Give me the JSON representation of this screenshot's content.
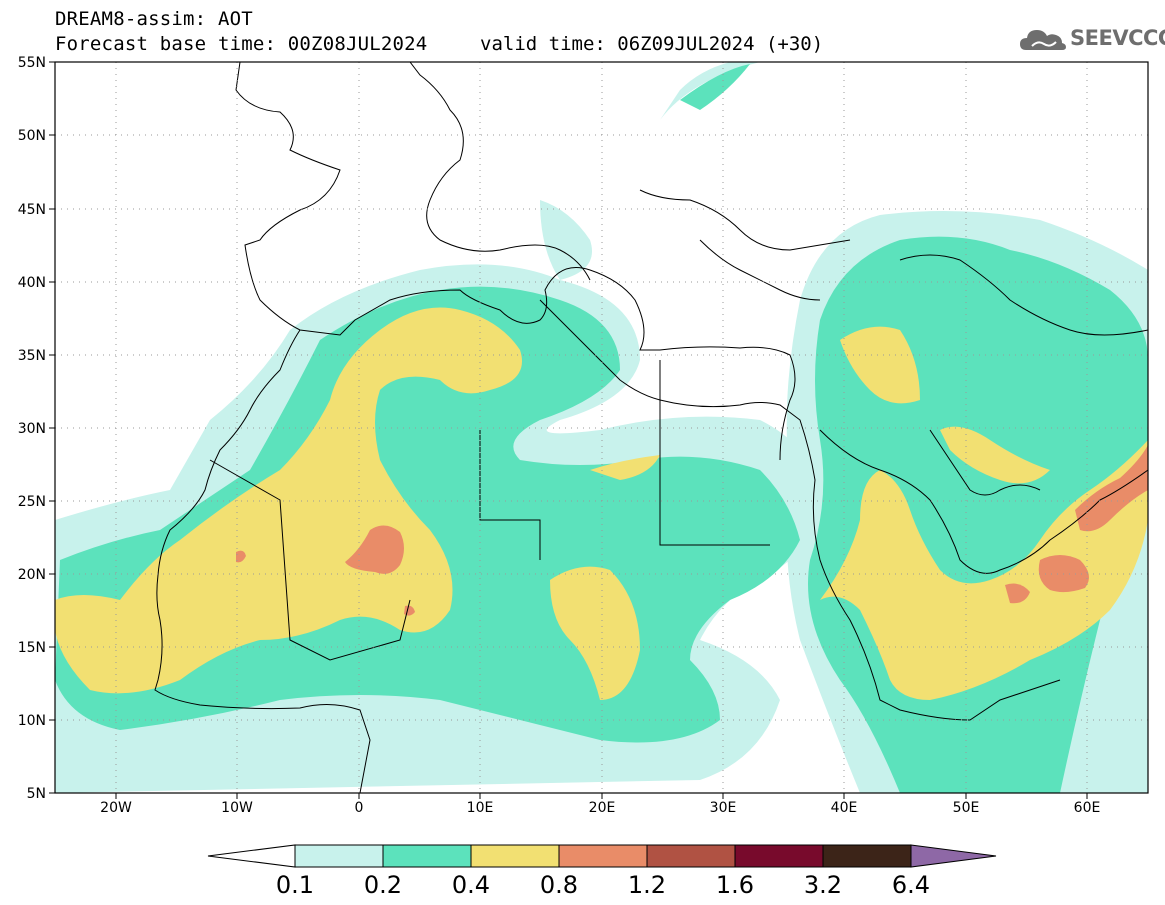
{
  "header": {
    "title": "DREAM8-assim: AOT",
    "base_time": "Forecast base time: 00Z08JUL2024",
    "valid_time": "valid time: 06Z09JUL2024 (+30)"
  },
  "logo": {
    "text": "SEEVCCC",
    "icon": "cloud-logo-icon"
  },
  "map": {
    "lat_ticks": [
      "55N",
      "50N",
      "45N",
      "40N",
      "35N",
      "30N",
      "25N",
      "20N",
      "15N",
      "10N",
      "5N"
    ],
    "lon_ticks": [
      "20W",
      "10W",
      "0",
      "10E",
      "20E",
      "30E",
      "40E",
      "50E",
      "60E"
    ]
  },
  "colorbar": {
    "labels": [
      "0.1",
      "0.2",
      "0.4",
      "0.8",
      "1.2",
      "1.6",
      "3.2",
      "6.4"
    ],
    "colors": [
      "#c8f2ec",
      "#5ce2bc",
      "#f2e072",
      "#e98c68",
      "#b05243",
      "#780a2c",
      "#3c2418",
      "#8e68a6"
    ]
  },
  "palette": {
    "c1": "#c8f2ec",
    "c2": "#5ce2bc",
    "c3": "#f2e072",
    "c4": "#e98c68"
  }
}
